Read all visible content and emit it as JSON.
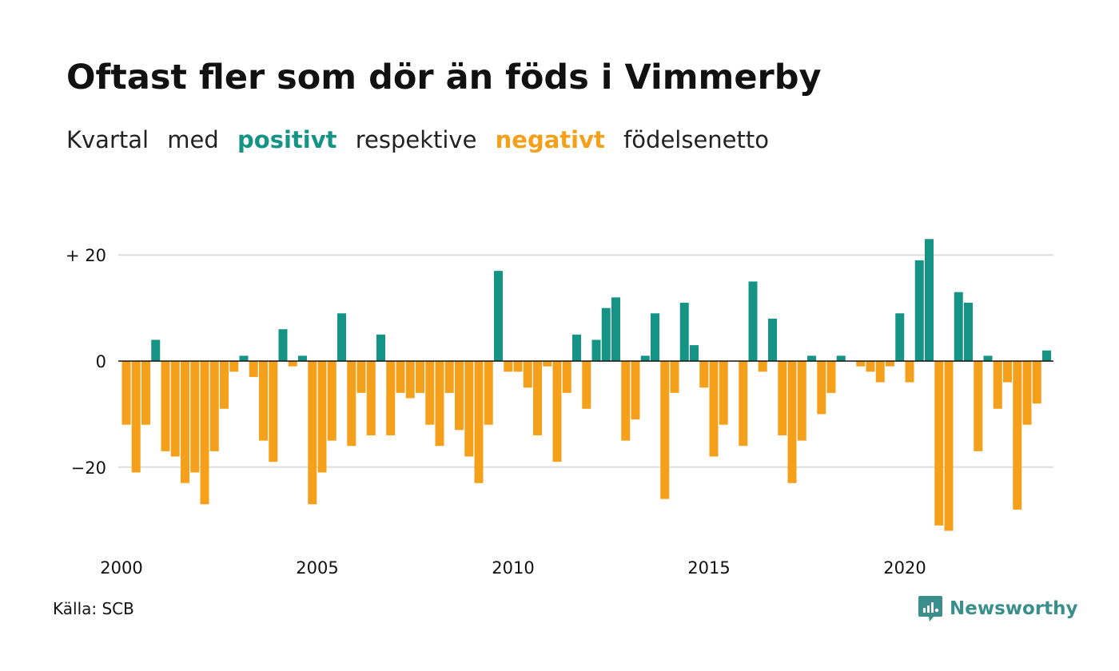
{
  "title": "Oftast fler som dör än föds i Vimmerby",
  "subtitle": {
    "w1": "Kvartal",
    "w2": "med",
    "positive": "positivt",
    "w3": "respektive",
    "negative": "negativt",
    "w4": "födelsenetto"
  },
  "source": "Källa: SCB",
  "brand": {
    "name": "Newsworthy",
    "icon": "newsworthy-logo-icon"
  },
  "colors": {
    "positive": "#159486",
    "negative": "#f5a01a",
    "grid": "#dddddd",
    "brand": "#3a8f8c"
  },
  "chart_data": {
    "type": "bar",
    "x_start": 2000,
    "x_step": 0.25,
    "values": [
      -12,
      -21,
      -12,
      4,
      -17,
      -18,
      -23,
      -21,
      -27,
      -17,
      -9,
      -2,
      1,
      -3,
      -15,
      -19,
      6,
      -1,
      1,
      -27,
      -21,
      -15,
      9,
      -16,
      -6,
      -14,
      5,
      -14,
      -6,
      -7,
      -6,
      -12,
      -16,
      -6,
      -13,
      -18,
      -23,
      -12,
      17,
      -2,
      -2,
      -5,
      -14,
      -1,
      -19,
      -6,
      5,
      -9,
      4,
      10,
      12,
      -15,
      -11,
      1,
      9,
      -26,
      -6,
      11,
      3,
      -5,
      -18,
      -12,
      0,
      -16,
      15,
      -2,
      8,
      -14,
      -23,
      -15,
      1,
      -10,
      -6,
      1,
      0,
      -1,
      -2,
      -4,
      -1,
      9,
      -4,
      19,
      23,
      -31,
      -32,
      13,
      11,
      -17,
      1,
      -9,
      -4,
      -28,
      -12,
      -8,
      2
    ],
    "ylim": [
      -32,
      23
    ],
    "yticks": [
      {
        "value": 20,
        "label": "+ 20"
      },
      {
        "value": 0,
        "label": "0"
      },
      {
        "value": -20,
        "label": "−20"
      }
    ],
    "xticks": [
      {
        "value": 2000,
        "label": "2000"
      },
      {
        "value": 2005,
        "label": "2005"
      },
      {
        "value": 2010,
        "label": "2010"
      },
      {
        "value": 2015,
        "label": "2015"
      },
      {
        "value": 2020,
        "label": "2020"
      }
    ],
    "grid": true,
    "legend": "none"
  }
}
